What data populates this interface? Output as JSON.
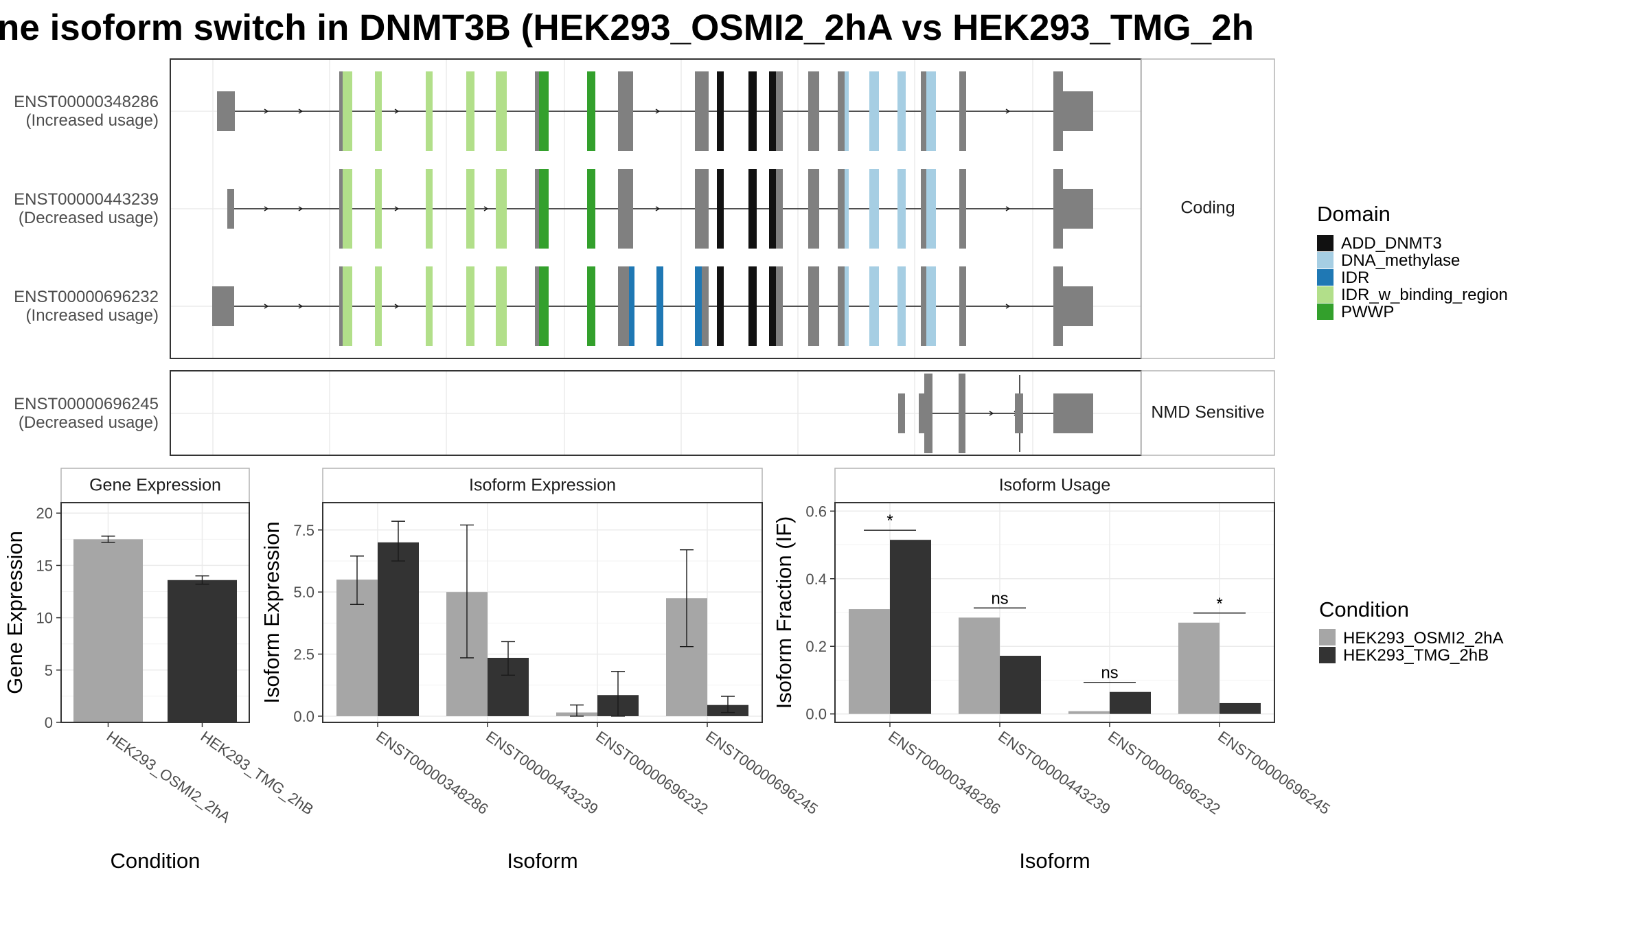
{
  "title": "ne isoform switch in DNMT3B (HEK293_OSMI2_2hA vs HEK293_TMG_2h",
  "colors": {
    "ADD_DNMT3": "#111111",
    "DNA_methylase": "#a6cee3",
    "IDR": "#1f78b4",
    "IDR_w_binding_region": "#b2df8a",
    "PWWP": "#33a02c",
    "exon": "#808080",
    "cond_a": "#a6a6a6",
    "cond_b": "#333333"
  },
  "structure": {
    "panels": [
      {
        "label": "Coding",
        "rows": [
          0,
          1,
          2
        ]
      },
      {
        "label": "NMD Sensitive",
        "rows": [
          3
        ]
      }
    ],
    "transcripts": [
      {
        "id": "ENST00000348286",
        "usage": "(Increased usage)"
      },
      {
        "id": "ENST00000443239",
        "usage": "(Decreased usage)"
      },
      {
        "id": "ENST00000696232",
        "usage": "(Increased usage)"
      },
      {
        "id": "ENST00000696245",
        "usage": "(Decreased usage)"
      }
    ],
    "domain_legend": {
      "title": "Domain",
      "items": [
        "ADD_DNMT3",
        "DNA_methylase",
        "IDR",
        "IDR_w_binding_region",
        "PWWP"
      ]
    }
  },
  "chart_data": [
    {
      "type": "bar",
      "title": "Gene Expression",
      "xlabel": "Condition",
      "ylabel": "Gene Expression",
      "categories": [
        "HEK293_OSMI2_2hA",
        "HEK293_TMG_2hB"
      ],
      "values": [
        17.5,
        13.6
      ],
      "errors": [
        [
          17.2,
          17.8
        ],
        [
          13.2,
          14.0
        ]
      ],
      "ylim": [
        0,
        21
      ],
      "yticks": [
        0,
        5,
        10,
        15,
        20
      ]
    },
    {
      "type": "bar",
      "title": "Isoform Expression",
      "xlabel": "Isoform",
      "ylabel": "Isoform Expression",
      "categories": [
        "ENST00000348286",
        "ENST00000443239",
        "ENST00000696232",
        "ENST00000696245"
      ],
      "series": [
        {
          "name": "HEK293_OSMI2_2hA",
          "values": [
            5.5,
            5.0,
            0.15,
            4.75
          ],
          "errors": [
            [
              4.5,
              6.45
            ],
            [
              2.35,
              7.7
            ],
            [
              0.0,
              0.45
            ],
            [
              2.8,
              6.7
            ]
          ]
        },
        {
          "name": "HEK293_TMG_2hB",
          "values": [
            7.0,
            2.35,
            0.85,
            0.45
          ],
          "errors": [
            [
              6.25,
              7.85
            ],
            [
              1.65,
              3.0
            ],
            [
              0.0,
              1.8
            ],
            [
              0.15,
              0.8
            ]
          ]
        }
      ],
      "ylim": [
        -0.25,
        8.6
      ],
      "yticks": [
        "0.0",
        "2.5",
        "5.0",
        "7.5"
      ]
    },
    {
      "type": "bar",
      "title": "Isoform Usage",
      "xlabel": "Isoform",
      "ylabel": "Isoform Fraction (IF)",
      "categories": [
        "ENST00000348286",
        "ENST00000443239",
        "ENST00000696232",
        "ENST00000696245"
      ],
      "series": [
        {
          "name": "HEK293_OSMI2_2hA",
          "values": [
            0.31,
            0.285,
            0.008,
            0.27
          ]
        },
        {
          "name": "HEK293_TMG_2hB",
          "values": [
            0.515,
            0.172,
            0.065,
            0.032
          ]
        }
      ],
      "significance": [
        "*",
        "ns",
        "ns",
        "*"
      ],
      "ylim": [
        -0.025,
        0.625
      ],
      "yticks": [
        "0.0",
        "0.2",
        "0.4",
        "0.6"
      ]
    }
  ],
  "condition_legend": {
    "title": "Condition",
    "items": [
      "HEK293_OSMI2_2hA",
      "HEK293_TMG_2hB"
    ]
  }
}
